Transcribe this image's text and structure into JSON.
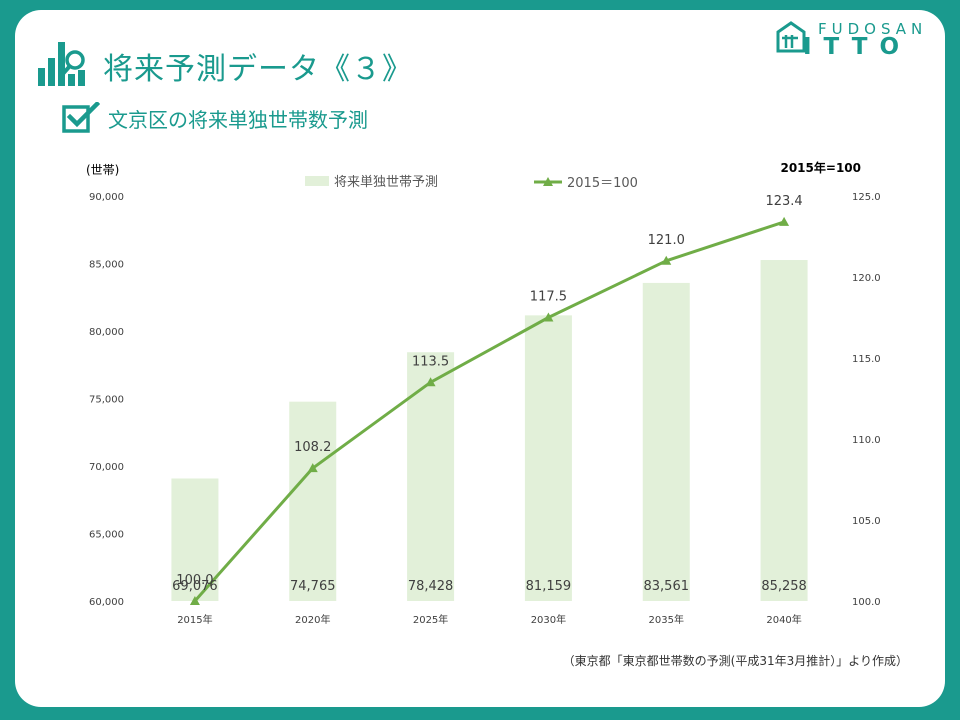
{
  "header": {
    "title": "将来予測データ《３》",
    "subtitle": "文京区の将来単独世帯数予測",
    "logo_top": "FUDOSAN",
    "logo_bottom": "ITTO"
  },
  "colors": {
    "background": "#1a9a8e",
    "bar": "#e2f0d9",
    "line": "#70ad47",
    "axis_text": "#404040"
  },
  "chart_data": {
    "type": "bar",
    "categories": [
      "2015年",
      "2020年",
      "2025年",
      "2030年",
      "2035年",
      "2040年"
    ],
    "series": [
      {
        "name": "将来単独世帯予測",
        "type": "bar",
        "axis": "left",
        "values": [
          69076,
          74765,
          78428,
          81159,
          83561,
          85258
        ],
        "labels": [
          "69,076",
          "74,765",
          "78,428",
          "81,159",
          "83,561",
          "85,258"
        ]
      },
      {
        "name": "2015＝100",
        "type": "line",
        "axis": "right",
        "values": [
          100.0,
          108.2,
          113.5,
          117.5,
          121.0,
          123.4
        ],
        "labels": [
          "100.0",
          "108.2",
          "113.5",
          "117.5",
          "121.0",
          "123.4"
        ]
      }
    ],
    "ylabel": "(世帯)",
    "y2label": "2015年=100",
    "ylim": [
      60000,
      90000
    ],
    "y_ticks": [
      "60,000",
      "65,000",
      "70,000",
      "75,000",
      "80,000",
      "85,000",
      "90,000"
    ],
    "y_tick_values": [
      60000,
      65000,
      70000,
      75000,
      80000,
      85000,
      90000
    ],
    "y2lim": [
      100,
      125
    ],
    "y2_ticks": [
      "100.0",
      "105.0",
      "110.0",
      "115.0",
      "120.0",
      "125.0"
    ],
    "y2_tick_values": [
      100,
      105,
      110,
      115,
      120,
      125
    ],
    "grid": false,
    "legend_position": "top"
  },
  "footer": {
    "source": "（東京都「東京都世帯数の予測(平成31年3月推計）」より作成）"
  }
}
